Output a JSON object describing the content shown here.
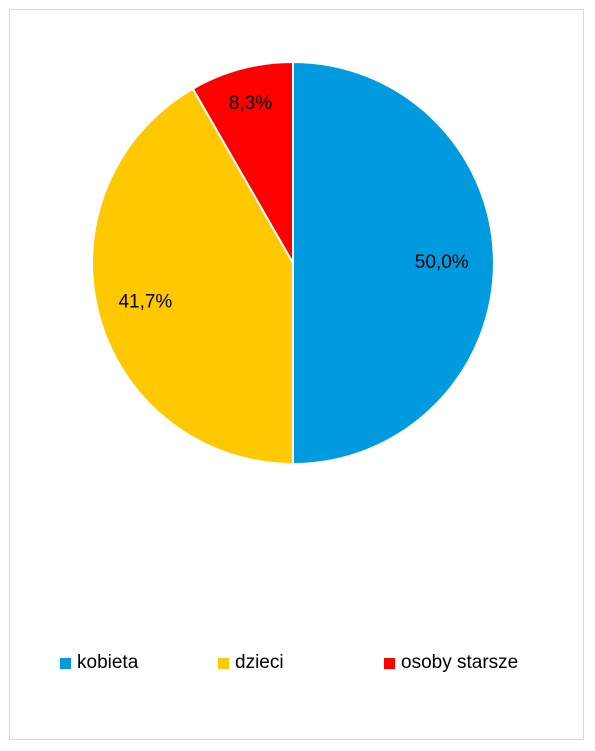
{
  "chart_data": {
    "type": "pie",
    "title": "",
    "categories": [
      "kobieta",
      "dzieci",
      "osoby starsze"
    ],
    "values": [
      50.0,
      41.7,
      8.3
    ],
    "data_labels": [
      "50,0%",
      "41,7%",
      "8,3%"
    ],
    "colors": [
      "#009BDE",
      "#FFC800",
      "#FF0000"
    ],
    "legend_position": "bottom",
    "grid": false
  },
  "legend": {
    "items": [
      {
        "label": "kobieta",
        "color": "#009BDE"
      },
      {
        "label": "dzieci",
        "color": "#FFC800"
      },
      {
        "label": "osoby starsze",
        "color": "#FF0000"
      }
    ]
  }
}
